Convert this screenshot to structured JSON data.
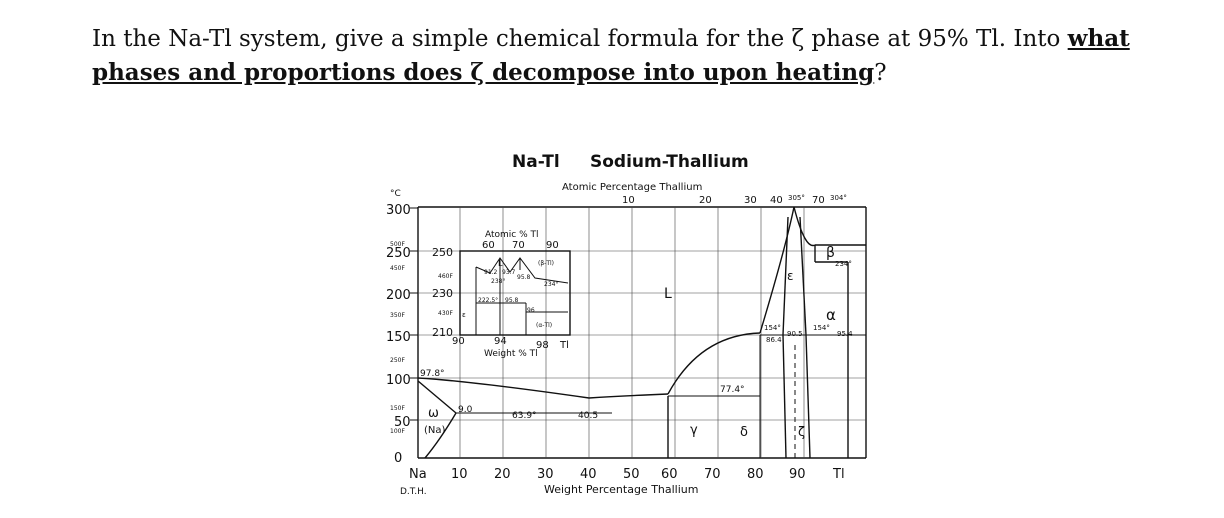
{
  "question": {
    "part1": "In the Na-Tl system, give a simple chemical formula for the ",
    "zeta1": "ζ",
    "part2": " phase at 95% Tl. Into ",
    "emphasis": "what phases and proportions does ζ decompose into upon heating",
    "end": "?"
  },
  "diagram": {
    "title_system": "Na-Tl",
    "title_name": "Sodium-Thallium",
    "top_axis_label": "Atomic Percentage Thallium",
    "top_ticks": [
      "10",
      "20",
      "30",
      "40",
      "70"
    ],
    "top_temps": [
      "305°",
      "304°"
    ],
    "unit_c": "°C",
    "y_ticks": [
      "300",
      "250",
      "200",
      "150",
      "100",
      "50",
      "0"
    ],
    "f_ticks": [
      "500F",
      "450F",
      "350F",
      "250F",
      "150F",
      "100F"
    ],
    "x_ticks": [
      "Na",
      "10",
      "20",
      "30",
      "40",
      "50",
      "60",
      "70",
      "80",
      "90",
      "Tl"
    ],
    "x_axis_label": "Weight Percentage Thallium",
    "credit": "D.T.H.",
    "labels": {
      "liquid": "L",
      "beta": "β",
      "epsilon": "ε",
      "alpha": "α",
      "gamma": "γ",
      "delta": "δ",
      "zeta": "ζ",
      "omega": "ω",
      "na_phase": "(Na)"
    },
    "annotations": {
      "t_97_8": "97.8°",
      "t_9_0": "9.0",
      "t_63_9": "63.9°",
      "t_40_5": "40.5",
      "t_77_4": "77.4°",
      "t_154a": "154°",
      "t_154b": "154°",
      "t_86_4": "86.4",
      "t_90_5": "90.5",
      "t_95_4": "95.4",
      "t_234": "234°"
    },
    "inset": {
      "top_label": "Atomic % Tl",
      "top_ticks": [
        "60",
        "70",
        "90"
      ],
      "y_ticks": [
        "250",
        "230",
        "210"
      ],
      "f_ticks": [
        "460F",
        "430F"
      ],
      "x_ticks": [
        "90",
        "94",
        "98"
      ],
      "x_end": "Tl",
      "x_label": "Weight % Tl",
      "labels": {
        "liquid": "L",
        "beta_tl": "(β-Tl)",
        "alpha_tl": "(α-Tl)",
        "eps": "ε",
        "n91_2": "91.2",
        "n93_7": "93.7",
        "n95_8a": "95.8",
        "n238": "238°",
        "n234": "234°",
        "n222_5": "222.5°",
        "n95_8b": "95.8",
        "n96": "96"
      }
    }
  }
}
